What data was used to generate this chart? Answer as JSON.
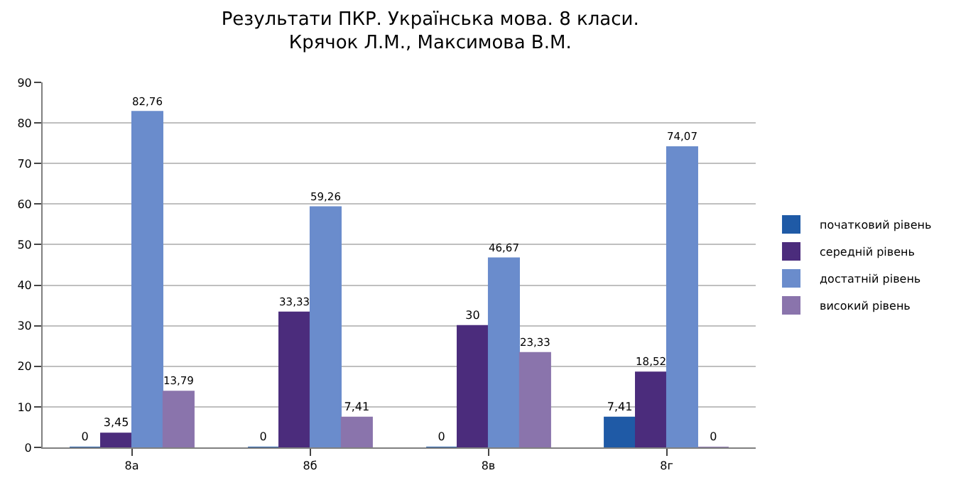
{
  "chart_data": {
    "type": "bar",
    "title": "Результати ПКР. Українська мова. 8 класи.\nКрячок Л.М., Максимова В.М.",
    "categories": [
      "8а",
      "8б",
      "8в",
      "8г"
    ],
    "series": [
      {
        "name": "початковий рівень",
        "color": "#1f5aa6",
        "values": [
          0,
          0,
          0,
          7.41
        ],
        "value_labels": [
          "0",
          "0",
          "0",
          "7,41"
        ]
      },
      {
        "name": "середній рівень",
        "color": "#4b2c7c",
        "values": [
          3.45,
          33.33,
          30,
          18.52
        ],
        "value_labels": [
          "3,45",
          "33,33",
          "30",
          "18,52"
        ]
      },
      {
        "name": "достатній рівень",
        "color": "#6a8ccc",
        "values": [
          82.76,
          59.26,
          46.67,
          74.07
        ],
        "value_labels": [
          "82,76",
          "59,26",
          "46,67",
          "74,07"
        ]
      },
      {
        "name": "високий рівень",
        "color": "#8a74ac",
        "values": [
          13.79,
          7.41,
          23.33,
          0
        ],
        "value_labels": [
          "13,79",
          "7,41",
          "23,33",
          "0"
        ]
      }
    ],
    "ylim": [
      0,
      90
    ],
    "yticks": [
      0,
      10,
      20,
      30,
      40,
      50,
      60,
      70,
      80,
      90
    ],
    "grid": "y",
    "legend": "right"
  }
}
